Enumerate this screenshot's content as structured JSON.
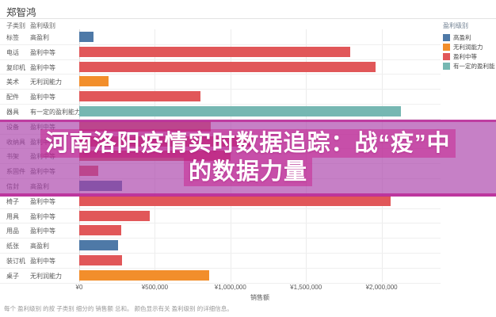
{
  "page": {
    "author": "郑智鸿"
  },
  "chart_data": {
    "type": "bar",
    "orientation": "horizontal",
    "row_header_columns": [
      "子类别",
      "盈利级别"
    ],
    "xlabel": "销售额",
    "x_ticks": [
      {
        "label": "¥0",
        "value": 0
      },
      {
        "label": "¥500,000",
        "value": 500000
      },
      {
        "label": "¥1,000,000",
        "value": 1000000
      },
      {
        "label": "¥1,500,000",
        "value": 1500000
      },
      {
        "label": "¥2,000,000",
        "value": 2000000
      }
    ],
    "xlim": [
      0,
      2390000
    ],
    "grid": true,
    "legend": {
      "title": "盈利级别",
      "position": "top-right",
      "items": [
        {
          "label": "高盈利",
          "color": "#4e79a7"
        },
        {
          "label": "无利润能力",
          "color": "#f28e2b"
        },
        {
          "label": "盈利中等",
          "color": "#e15759"
        },
        {
          "label": "有一定的盈利能力",
          "color": "#76b7b2"
        }
      ]
    },
    "rows": [
      {
        "category": "标签",
        "level": "高盈利",
        "value": 95000,
        "color": "#4e79a7"
      },
      {
        "category": "电话",
        "level": "盈利中等",
        "value": 1790000,
        "color": "#e15759"
      },
      {
        "category": "复印机",
        "level": "盈利中等",
        "value": 1960000,
        "color": "#e15759"
      },
      {
        "category": "美术",
        "level": "无利润能力",
        "value": 195000,
        "color": "#f28e2b"
      },
      {
        "category": "配件",
        "level": "盈利中等",
        "value": 800000,
        "color": "#e15759"
      },
      {
        "category": "器具",
        "level": "有一定的盈利能力",
        "value": 2130000,
        "color": "#76b7b2"
      },
      {
        "category": "设备",
        "level": "盈利中等",
        "value": 870000,
        "color": "#e15759"
      },
      {
        "category": "收纳具",
        "level": "盈利中等",
        "value": 1150000,
        "color": "#e15759"
      },
      {
        "category": "书架",
        "level": "盈利中等",
        "value": 1000000,
        "color": "#e15759"
      },
      {
        "category": "系固件",
        "level": "盈利中等",
        "value": 128000,
        "color": "#e15759"
      },
      {
        "category": "信封",
        "level": "高盈利",
        "value": 284000,
        "color": "#4e79a7"
      },
      {
        "category": "椅子",
        "level": "盈利中等",
        "value": 2060000,
        "color": "#e15759"
      },
      {
        "category": "用具",
        "level": "盈利中等",
        "value": 468000,
        "color": "#e15759"
      },
      {
        "category": "用品",
        "level": "盈利中等",
        "value": 279000,
        "color": "#e15759"
      },
      {
        "category": "纸张",
        "level": "高盈利",
        "value": 258000,
        "color": "#4e79a7"
      },
      {
        "category": "装订机",
        "level": "盈利中等",
        "value": 284000,
        "color": "#e15759"
      },
      {
        "category": "桌子",
        "level": "无利润能力",
        "value": 858000,
        "color": "#f28e2b"
      }
    ],
    "caption": "每个 盈利级别 的按 子类别 细分的 销售额 总和。 颜色显示有关 盈利级别 的详细信息。"
  },
  "overlay": {
    "title_lines": [
      "河南洛阳疫情实时数据追踪：战“疫”中",
      "的数据力量"
    ],
    "full_title": "河南洛阳疫情实时数据追踪：战“疫”中的数据力量",
    "background_color": "rgba(168,62,168,0.66)",
    "highlight_color": "rgba(199,21,133,0.45)"
  }
}
